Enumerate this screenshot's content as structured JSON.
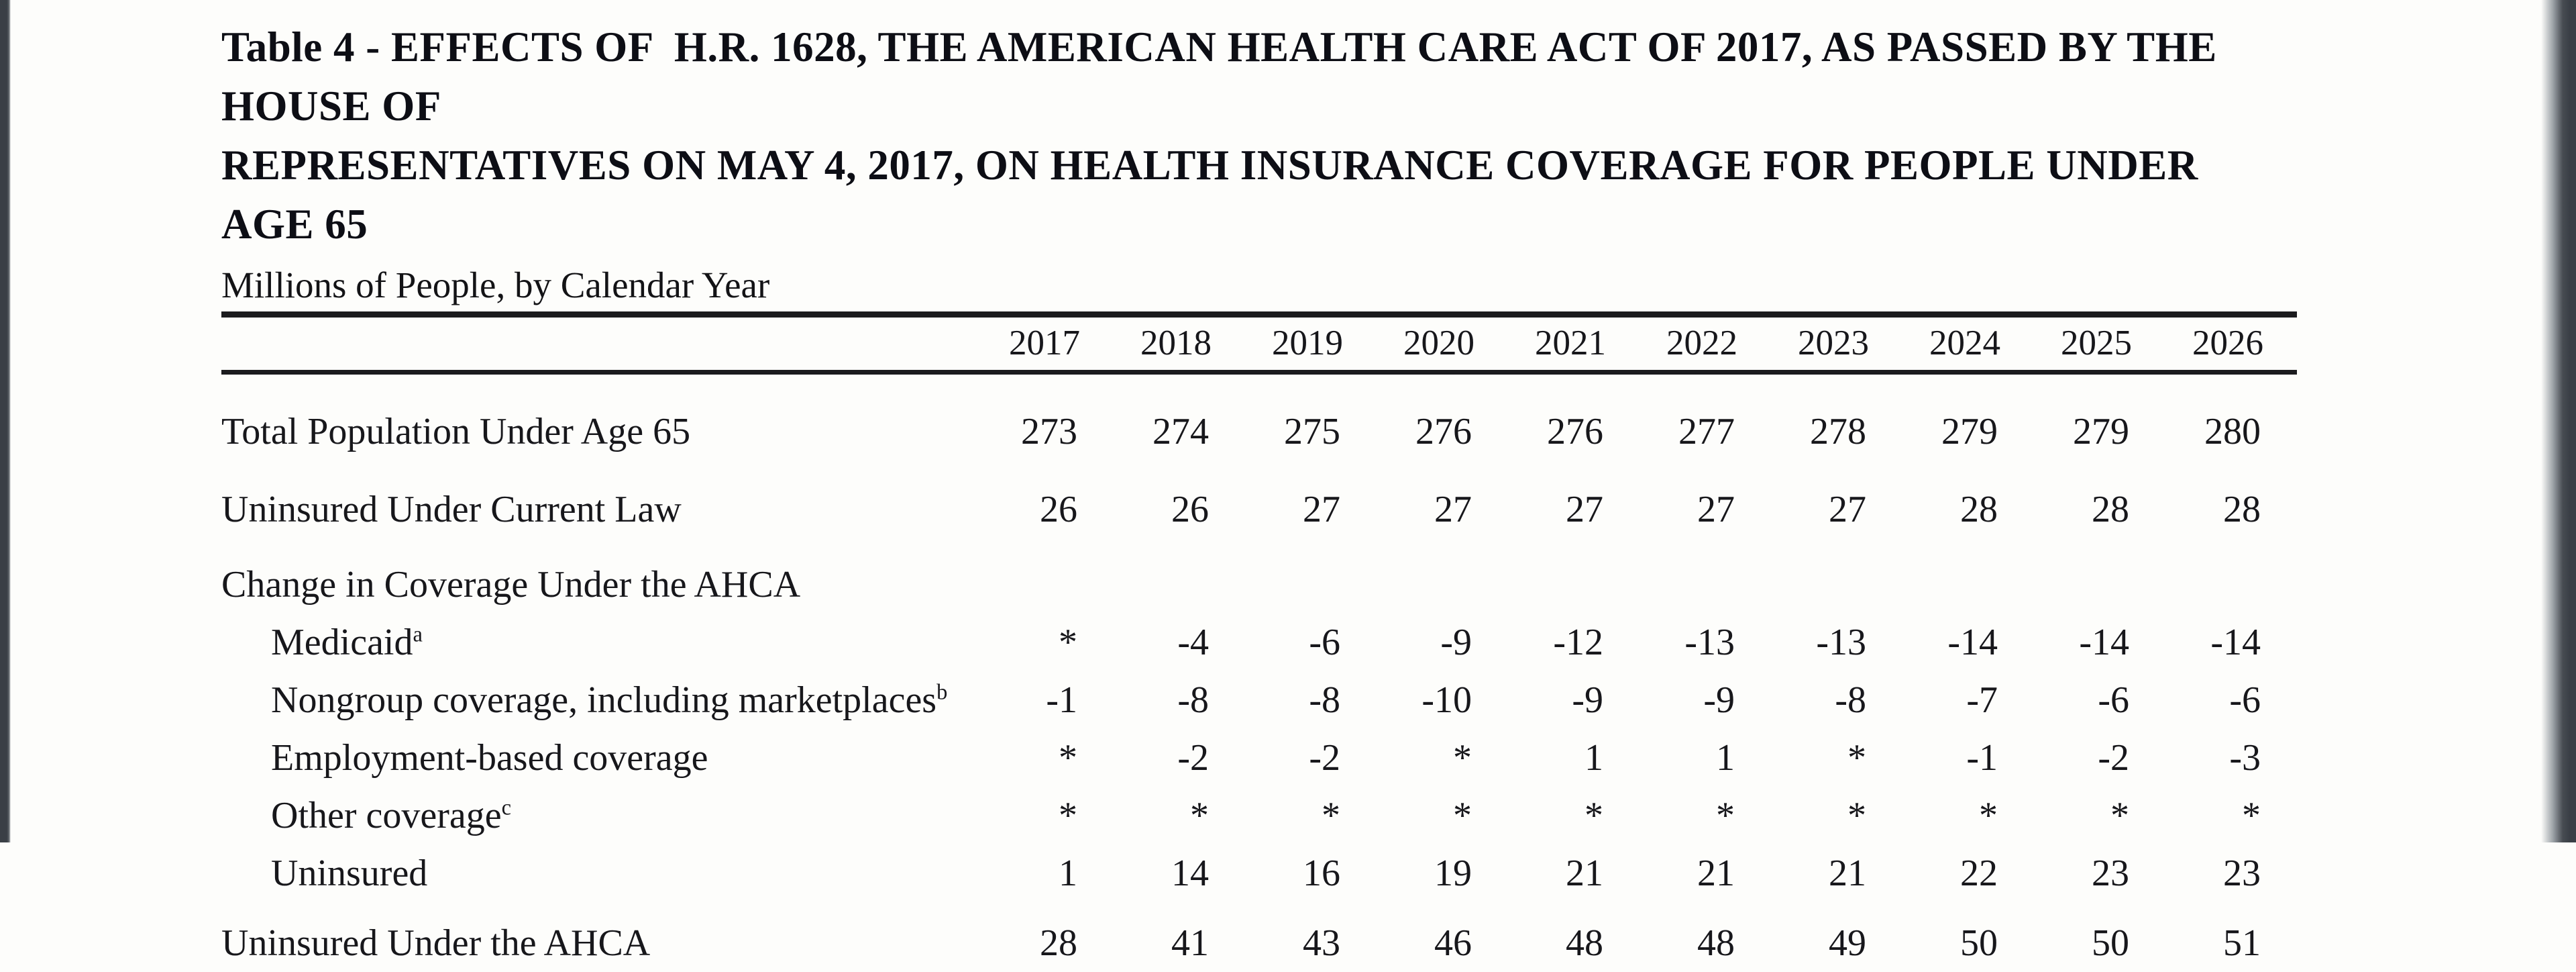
{
  "viewer": {
    "edge_color": "#3a3f46",
    "page_background": "#fdfdfb"
  },
  "document": {
    "title_line1": "Table 4 - EFFECTS OF  H.R. 1628, THE AMERICAN HEALTH CARE ACT OF 2017, AS PASSED BY THE HOUSE OF",
    "title_line2": "REPRESENTATIVES ON MAY 4, 2017, ON HEALTH INSURANCE COVERAGE FOR PEOPLE UNDER AGE 65",
    "subtitle": "Millions of People, by Calendar Year"
  },
  "table": {
    "label_column_header": "",
    "columns": [
      "2017",
      "2018",
      "2019",
      "2020",
      "2021",
      "2022",
      "2023",
      "2024",
      "2025",
      "2026"
    ],
    "rows": [
      {
        "label": "Total Population Under Age 65",
        "sup": "",
        "indent": false,
        "gap": "xl",
        "values": [
          "273",
          "274",
          "275",
          "276",
          "276",
          "277",
          "278",
          "279",
          "279",
          "280"
        ]
      },
      {
        "label": "Uninsured Under Current Law",
        "sup": "",
        "indent": false,
        "gap": "lg",
        "values": [
          "26",
          "26",
          "27",
          "27",
          "27",
          "27",
          "27",
          "28",
          "28",
          "28"
        ]
      },
      {
        "label": "Change in Coverage Under the AHCA",
        "sup": "",
        "indent": false,
        "gap": "md",
        "values": [
          "",
          "",
          "",
          "",
          "",
          "",
          "",
          "",
          "",
          ""
        ]
      },
      {
        "label": "Medicaid",
        "sup": "a",
        "indent": true,
        "gap": "none",
        "values": [
          "*",
          "-4",
          "-6",
          "-9",
          "-12",
          "-13",
          "-13",
          "-14",
          "-14",
          "-14"
        ]
      },
      {
        "label": "Nongroup coverage, including marketplaces",
        "sup": "b",
        "indent": true,
        "gap": "none",
        "values": [
          "-1",
          "-8",
          "-8",
          "-10",
          "-9",
          "-9",
          "-8",
          "-7",
          "-6",
          "-6"
        ]
      },
      {
        "label": "Employment-based coverage",
        "sup": "",
        "indent": true,
        "gap": "none",
        "values": [
          "*",
          "-2",
          "-2",
          "*",
          "1",
          "1",
          "*",
          "-1",
          "-2",
          "-3"
        ]
      },
      {
        "label": "Other coverage",
        "sup": "c",
        "indent": true,
        "gap": "none",
        "values": [
          "*",
          "*",
          "*",
          "*",
          "*",
          "*",
          "*",
          "*",
          "*",
          "*"
        ]
      },
      {
        "label": "Uninsured",
        "sup": "",
        "indent": true,
        "gap": "none",
        "values": [
          "1",
          "14",
          "16",
          "19",
          "21",
          "21",
          "21",
          "22",
          "23",
          "23"
        ]
      },
      {
        "label": "Uninsured Under the AHCA",
        "sup": "",
        "indent": false,
        "gap": "sm",
        "values": [
          "28",
          "41",
          "43",
          "46",
          "48",
          "48",
          "49",
          "50",
          "50",
          "51"
        ]
      }
    ]
  }
}
